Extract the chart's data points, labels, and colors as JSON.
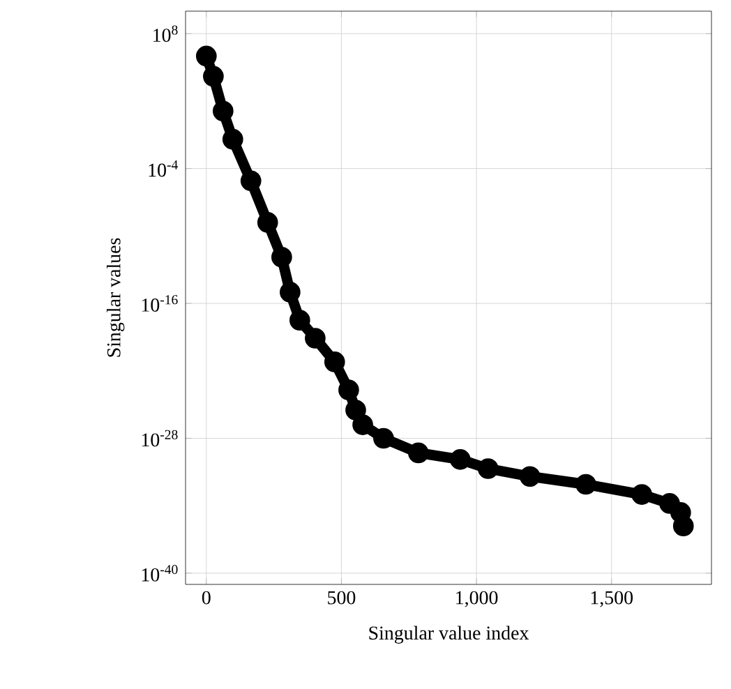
{
  "chart_data": {
    "type": "line",
    "xlabel": "Singular value index",
    "ylabel": "Singular values",
    "log": "y",
    "grid": true,
    "marker": "circle",
    "line_style": "solid",
    "xlim": [
      -77,
      1870
    ],
    "ylim": [
      1e-41,
      10000000000.0
    ],
    "xticks": [
      0,
      500,
      {
        "value": 1000,
        "label": "1,000"
      },
      {
        "value": 1500,
        "label": "1,500"
      }
    ],
    "yticks": [
      {
        "value": 100000000.0,
        "label": "10$^{8}$"
      },
      {
        "value": 0.0001,
        "label": "10$^{-4}$"
      },
      {
        "value": 1e-16,
        "label": "10$^{-16}$"
      },
      {
        "value": 1e-28,
        "label": "10$^{-28}$"
      },
      {
        "value": 1e-40,
        "label": "10$^{-40}$"
      }
    ],
    "series": [
      {
        "color": "#000000",
        "x": [
          0,
          26,
          62,
          98,
          165,
          227,
          279,
          310,
          346,
          403,
          475,
          527,
          553,
          579,
          656,
          785,
          940,
          1043,
          1198,
          1405,
          1612,
          1715,
          1756,
          1766
        ],
        "values": [
          1000000.0,
          16000.0,
          13.0,
          0.04,
          8e-06,
          1.6e-09,
          1.3e-12,
          1e-15,
          3.2e-18,
          8e-20,
          6.3e-22,
          2e-24,
          3.2e-26,
          1.6e-27,
          1e-28,
          5e-30,
          1.3e-30,
          2e-31,
          4e-32,
          8e-33,
          1e-33,
          1.6e-34,
          2.5e-35,
          1.6e-36
        ]
      }
    ]
  }
}
